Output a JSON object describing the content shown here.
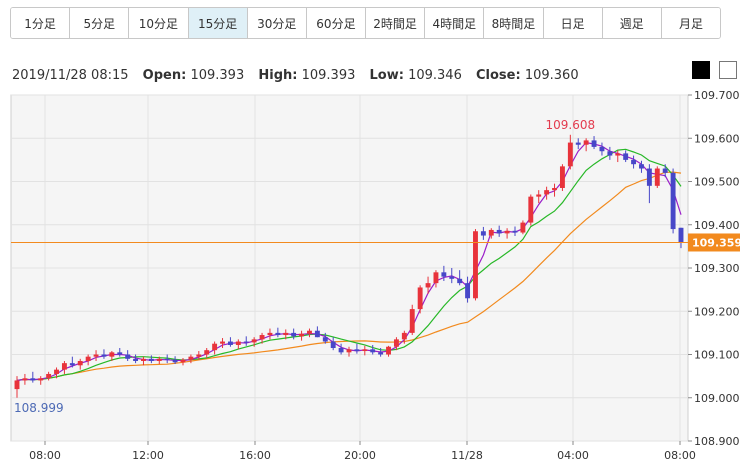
{
  "tabs": [
    {
      "label": "1分足"
    },
    {
      "label": "5分足"
    },
    {
      "label": "10分足"
    },
    {
      "label": "15分足",
      "active": true
    },
    {
      "label": "30分足"
    },
    {
      "label": "60分足"
    },
    {
      "label": "2時間足"
    },
    {
      "label": "4時間足"
    },
    {
      "label": "8時間足"
    },
    {
      "label": "日足"
    },
    {
      "label": "週足"
    },
    {
      "label": "月足"
    }
  ],
  "info": {
    "datetime": "2019/11/28 08:15",
    "open_label": "Open:",
    "open": "109.393",
    "high_label": "High:",
    "high": "109.393",
    "low_label": "Low:",
    "low": "109.346",
    "close_label": "Close:",
    "close": "109.360"
  },
  "theme": {
    "dark_swatch": "#000000",
    "light_swatch": "#ffffff"
  },
  "colors": {
    "up": "#e8333b",
    "down": "#4747c8",
    "ma_short": "#9b1fc9",
    "ma_mid": "#27b827",
    "ma_long": "#f28a1e",
    "current_line": "#f28a1e",
    "annotation_high": "#e33b4e",
    "annotation_low": "#4d6ab5"
  },
  "chart_data": {
    "type": "candlestick",
    "ylim": [
      108.9,
      109.7
    ],
    "yticks": [
      "109.700",
      "109.600",
      "109.500",
      "109.400",
      "109.300",
      "109.200",
      "109.100",
      "109.000",
      "108.900"
    ],
    "xticks": [
      "08:00",
      "12:00",
      "16:00",
      "20:00",
      "11/28",
      "04:00",
      "08:00"
    ],
    "current_price": "109.359",
    "high_annotation": "109.608",
    "low_annotation": "108.999",
    "grid": true,
    "candles": [
      [
        109.02,
        109.05,
        109.0,
        109.04
      ],
      [
        109.04,
        109.055,
        109.03,
        109.045
      ],
      [
        109.045,
        109.06,
        109.035,
        109.04
      ],
      [
        109.04,
        109.05,
        109.03,
        109.045
      ],
      [
        109.045,
        109.06,
        109.04,
        109.055
      ],
      [
        109.055,
        109.07,
        109.045,
        109.065
      ],
      [
        109.065,
        109.085,
        109.055,
        109.08
      ],
      [
        109.08,
        109.095,
        109.07,
        109.075
      ],
      [
        109.075,
        109.09,
        109.065,
        109.085
      ],
      [
        109.085,
        109.1,
        109.075,
        109.095
      ],
      [
        109.095,
        109.11,
        109.085,
        109.1
      ],
      [
        109.1,
        109.112,
        109.09,
        109.095
      ],
      [
        109.095,
        109.108,
        109.085,
        109.105
      ],
      [
        109.105,
        109.115,
        109.095,
        109.1
      ],
      [
        109.1,
        109.11,
        109.085,
        109.09
      ],
      [
        109.09,
        109.1,
        109.08,
        109.085
      ],
      [
        109.085,
        109.095,
        109.075,
        109.09
      ],
      [
        109.09,
        109.098,
        109.08,
        109.085
      ],
      [
        109.085,
        109.095,
        109.078,
        109.09
      ],
      [
        109.09,
        109.1,
        109.08,
        109.088
      ],
      [
        109.088,
        109.096,
        109.078,
        109.082
      ],
      [
        109.082,
        109.092,
        109.075,
        109.088
      ],
      [
        109.088,
        109.1,
        109.08,
        109.095
      ],
      [
        109.095,
        109.108,
        109.088,
        109.1
      ],
      [
        109.1,
        109.115,
        109.092,
        109.11
      ],
      [
        109.11,
        109.13,
        109.1,
        109.125
      ],
      [
        109.125,
        109.138,
        109.115,
        109.13
      ],
      [
        109.13,
        109.14,
        109.118,
        109.122
      ],
      [
        109.122,
        109.135,
        109.112,
        109.13
      ],
      [
        109.13,
        109.142,
        109.12,
        109.128
      ],
      [
        109.128,
        109.14,
        109.118,
        109.135
      ],
      [
        109.135,
        109.15,
        109.125,
        109.145
      ],
      [
        109.145,
        109.16,
        109.135,
        109.15
      ],
      [
        109.15,
        109.162,
        109.14,
        109.145
      ],
      [
        109.145,
        109.158,
        109.135,
        109.15
      ],
      [
        109.15,
        109.16,
        109.135,
        109.142
      ],
      [
        109.142,
        109.155,
        109.132,
        109.148
      ],
      [
        109.148,
        109.16,
        109.14,
        109.155
      ],
      [
        109.155,
        109.165,
        109.14,
        109.14
      ],
      [
        109.14,
        109.15,
        109.125,
        109.13
      ],
      [
        109.13,
        109.14,
        109.11,
        109.115
      ],
      [
        109.115,
        109.125,
        109.1,
        109.105
      ],
      [
        109.105,
        109.118,
        109.095,
        109.112
      ],
      [
        109.112,
        109.125,
        109.102,
        109.108
      ],
      [
        109.108,
        109.12,
        109.098,
        109.112
      ],
      [
        109.112,
        109.122,
        109.1,
        109.105
      ],
      [
        109.105,
        109.115,
        109.095,
        109.1
      ],
      [
        109.1,
        109.12,
        109.095,
        109.118
      ],
      [
        109.118,
        109.14,
        109.11,
        109.135
      ],
      [
        109.135,
        109.155,
        109.125,
        109.15
      ],
      [
        109.15,
        109.215,
        109.145,
        109.205
      ],
      [
        109.205,
        109.26,
        109.195,
        109.255
      ],
      [
        109.255,
        109.28,
        109.24,
        109.265
      ],
      [
        109.265,
        109.295,
        109.255,
        109.29
      ],
      [
        109.29,
        109.305,
        109.27,
        109.28
      ],
      [
        109.28,
        109.3,
        109.265,
        109.275
      ],
      [
        109.275,
        109.295,
        109.26,
        109.265
      ],
      [
        109.265,
        109.28,
        109.22,
        109.23
      ],
      [
        109.23,
        109.39,
        109.225,
        109.385
      ],
      [
        109.385,
        109.395,
        109.365,
        109.375
      ],
      [
        109.375,
        109.392,
        109.368,
        109.388
      ],
      [
        109.388,
        109.398,
        109.372,
        109.38
      ],
      [
        109.38,
        109.392,
        109.368,
        109.386
      ],
      [
        109.386,
        109.396,
        109.374,
        109.382
      ],
      [
        109.382,
        109.41,
        109.378,
        109.405
      ],
      [
        109.405,
        109.47,
        109.398,
        109.465
      ],
      [
        109.465,
        109.48,
        109.45,
        109.47
      ],
      [
        109.47,
        109.488,
        109.458,
        109.48
      ],
      [
        109.48,
        109.495,
        109.465,
        109.485
      ],
      [
        109.485,
        109.54,
        109.478,
        109.535
      ],
      [
        109.535,
        109.608,
        109.528,
        109.59
      ],
      [
        109.59,
        109.6,
        109.575,
        109.585
      ],
      [
        109.585,
        109.6,
        109.57,
        109.595
      ],
      [
        109.595,
        109.605,
        109.575,
        109.58
      ],
      [
        109.58,
        109.59,
        109.56,
        109.57
      ],
      [
        109.57,
        109.58,
        109.55,
        109.56
      ],
      [
        109.56,
        109.572,
        109.545,
        109.565
      ],
      [
        109.565,
        109.572,
        109.545,
        109.55
      ],
      [
        109.55,
        109.56,
        109.53,
        109.54
      ],
      [
        109.54,
        109.548,
        109.52,
        109.53
      ],
      [
        109.53,
        109.54,
        109.45,
        109.49
      ],
      [
        109.49,
        109.535,
        109.485,
        109.53
      ],
      [
        109.53,
        109.54,
        109.51,
        109.52
      ],
      [
        109.52,
        109.53,
        109.38,
        109.39
      ],
      [
        109.393,
        109.393,
        109.346,
        109.36
      ]
    ]
  }
}
